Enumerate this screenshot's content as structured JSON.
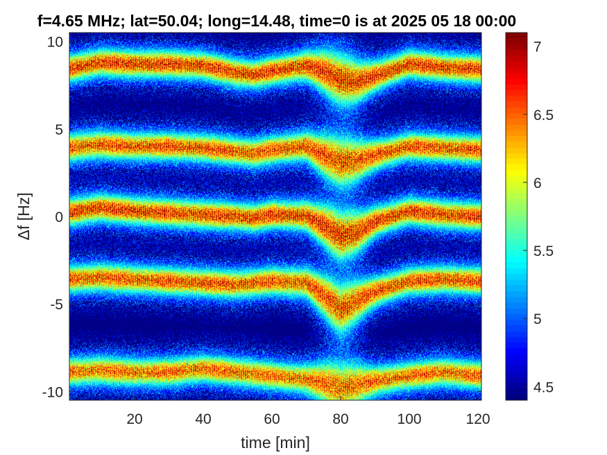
{
  "chart_data": {
    "type": "heatmap",
    "title": "f=4.65 MHz;  lat=50.04; long=14.48, time=0 is at 2025 05 18 00:00",
    "xlabel": "time [min]",
    "ylabel": "Δf [Hz]",
    "xlim": [
      1,
      121
    ],
    "ylim": [
      -10.5,
      10.5
    ],
    "xticks": [
      20,
      40,
      60,
      80,
      100,
      120
    ],
    "yticks": [
      -10,
      -5,
      0,
      5,
      10
    ],
    "ytick_labels": [
      "-10",
      "-5",
      "0",
      "5",
      "10"
    ],
    "colorbar": {
      "colormap": "jet",
      "clim": [
        4.4,
        7.1
      ],
      "ticks": [
        4.5,
        5,
        5.5,
        6,
        6.5,
        7
      ],
      "tick_labels": [
        "4.5",
        "5",
        "5.5",
        "6",
        "6.5",
        "7"
      ]
    },
    "bands": [
      {
        "x": [
          0,
          10,
          20,
          30,
          40,
          50,
          55,
          60,
          70,
          75,
          80,
          85,
          90,
          100,
          110,
          120
        ],
        "center": [
          8.4,
          8.8,
          8.7,
          8.7,
          8.6,
          8.2,
          8.1,
          8.3,
          8.6,
          8.3,
          7.8,
          7.7,
          8.0,
          8.7,
          8.5,
          8.4
        ],
        "peak": 7.0
      },
      {
        "x": [
          0,
          10,
          20,
          30,
          40,
          50,
          55,
          60,
          70,
          75,
          80,
          85,
          90,
          100,
          110,
          120
        ],
        "center": [
          3.9,
          4.1,
          4.0,
          4.0,
          3.9,
          3.7,
          3.6,
          3.8,
          4.0,
          3.5,
          3.1,
          3.2,
          3.5,
          4.0,
          3.9,
          3.8
        ],
        "peak": 6.9
      },
      {
        "x": [
          0,
          10,
          20,
          30,
          40,
          50,
          55,
          60,
          70,
          75,
          80,
          85,
          90,
          100,
          110,
          120
        ],
        "center": [
          0.2,
          0.5,
          0.3,
          0.2,
          0.1,
          0.0,
          -0.1,
          0.1,
          0.0,
          -0.5,
          -1.1,
          -0.9,
          -0.3,
          0.3,
          0.1,
          0.0
        ],
        "peak": 7.0
      },
      {
        "x": [
          0,
          10,
          20,
          30,
          40,
          50,
          55,
          60,
          70,
          75,
          80,
          85,
          90,
          100,
          110,
          120
        ],
        "center": [
          -3.6,
          -3.5,
          -3.6,
          -3.7,
          -3.8,
          -3.9,
          -3.8,
          -3.7,
          -3.8,
          -4.5,
          -5.3,
          -4.8,
          -4.3,
          -3.7,
          -3.6,
          -3.7
        ],
        "peak": 6.9
      },
      {
        "x": [
          0,
          10,
          20,
          30,
          40,
          50,
          55,
          60,
          70,
          75,
          80,
          85,
          90,
          100,
          110,
          120
        ],
        "center": [
          -8.9,
          -8.8,
          -8.9,
          -8.9,
          -8.7,
          -8.9,
          -9.0,
          -9.1,
          -9.3,
          -9.5,
          -9.8,
          -9.6,
          -9.4,
          -9.1,
          -8.9,
          -9.1
        ],
        "peak": 6.8
      }
    ],
    "background_value": 4.4,
    "grid": false
  }
}
